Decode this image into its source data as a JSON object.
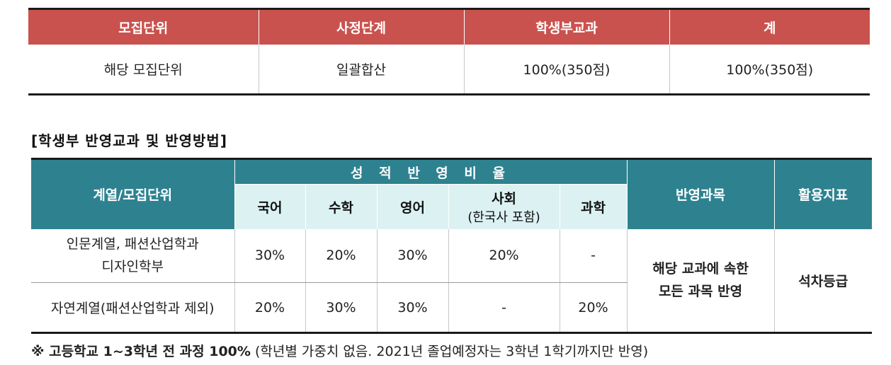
{
  "table1": {
    "headers": [
      "모집단위",
      "사정단계",
      "학생부교과",
      "계"
    ],
    "row": [
      "해당 모집단위",
      "일괄합산",
      "100%(350점)",
      "100%(350점)"
    ]
  },
  "section_title": "[학생부 반영교과 및 반영방법]",
  "table2": {
    "col_unit": "계열/모집단위",
    "group_header": "성 적 반 영 비 율",
    "subjects": [
      "국어",
      "수학",
      "영어",
      "사회",
      "과학"
    ],
    "social_sub": "(한국사 포함)",
    "col_subjects": "반영과목",
    "col_index": "활용지표",
    "rows": [
      {
        "unit_line1": "인문계열, 패션산업학과",
        "unit_line2": "디자인학부",
        "values": [
          "30%",
          "20%",
          "30%",
          "20%",
          "-"
        ]
      },
      {
        "unit_line1": "자연계열(패션산업학과 제외)",
        "unit_line2": "",
        "values": [
          "20%",
          "30%",
          "30%",
          "-",
          "20%"
        ]
      }
    ],
    "subjects_text_line1": "해당 교과에 속한",
    "subjects_text_line2": "모든 과목 반영",
    "index_text": "석차등급"
  },
  "footnote": {
    "bold": "※ 고등학교 1~3학년 전 과정 100%",
    "normal": " (학년별 가중치 없음. 2021년 졸업예정자는 3학년 1학기까지만 반영)"
  },
  "colors": {
    "header_red": "#c9524e",
    "header_teal": "#2e8290",
    "header_light": "#dcf2f2"
  }
}
